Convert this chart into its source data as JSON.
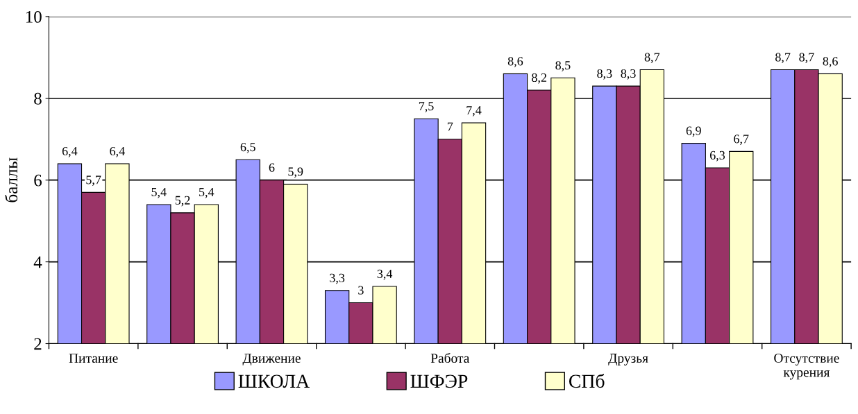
{
  "chart_data": {
    "type": "bar",
    "ylabel": "баллы",
    "categories": [
      "Питание",
      null,
      "Движение",
      null,
      "Работа",
      null,
      "Друзья",
      null,
      "Отсутствие\nкурения"
    ],
    "series": [
      {
        "name": "ШКОЛА",
        "color": "#9999ff",
        "values": [
          6.4,
          5.4,
          6.5,
          3.3,
          7.5,
          8.6,
          8.3,
          6.9,
          8.7
        ],
        "value_labels": [
          "6,4",
          "5,4",
          "6,5",
          "3,3",
          "7,5",
          "8,6",
          "8,3",
          "6,9",
          "8,7"
        ]
      },
      {
        "name": "ШФЭР",
        "color": "#993366",
        "values": [
          5.7,
          5.2,
          6,
          3,
          7,
          8.2,
          8.3,
          6.3,
          8.7
        ],
        "value_labels": [
          "5,7",
          "5,2",
          "6",
          "3",
          "7",
          "8,2",
          "8,3",
          "6,3",
          "8,7"
        ]
      },
      {
        "name": "СПб",
        "color": "#ffffcc",
        "values": [
          6.4,
          5.4,
          5.9,
          3.4,
          7.4,
          8.5,
          8.7,
          6.7,
          8.6
        ],
        "value_labels": [
          "6,4",
          "5,4",
          "5,9",
          "3,4",
          "7,4",
          "8,5",
          "8,7",
          "6,7",
          "8,6"
        ]
      }
    ],
    "ylim": [
      2,
      10
    ],
    "yticks": [
      2,
      4,
      6,
      8,
      10
    ],
    "grid": "y",
    "legend": "bottom"
  }
}
